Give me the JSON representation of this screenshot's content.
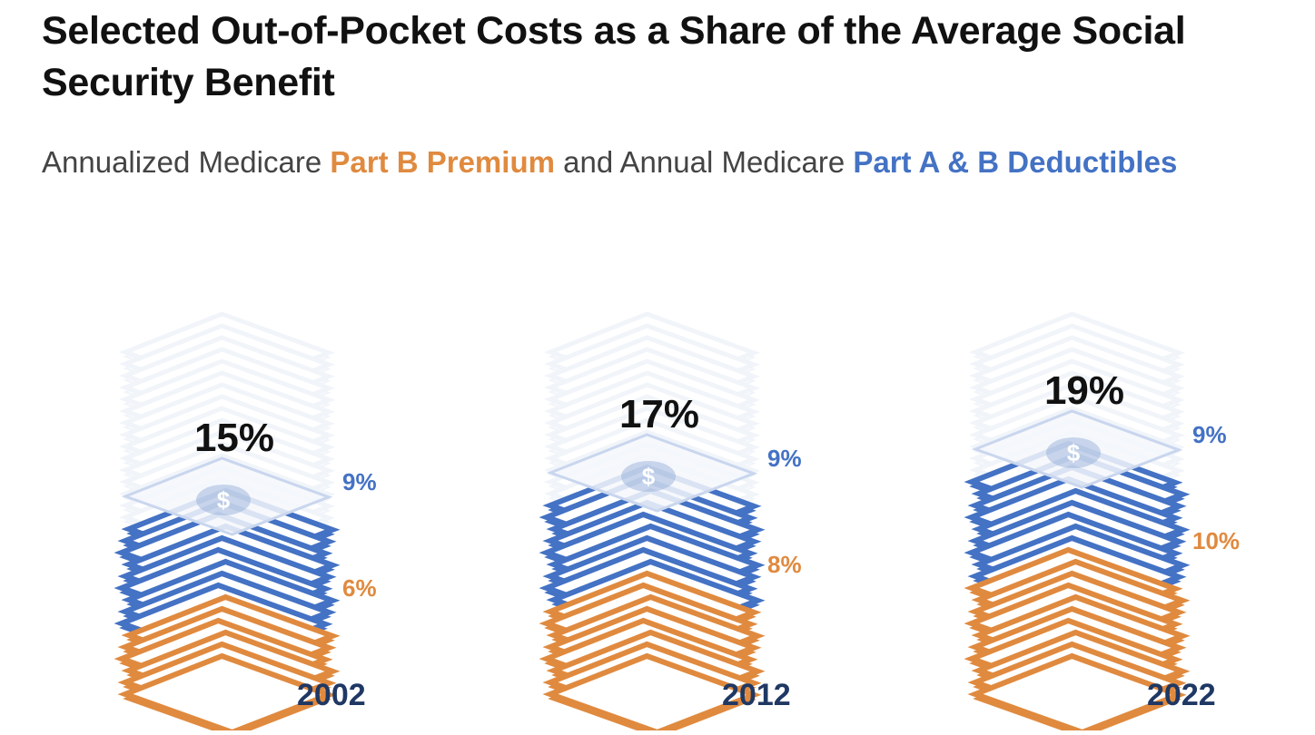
{
  "title": "Selected Out-of-Pocket Costs as a Share of the Average Social Security Benefit",
  "subtitle": {
    "part1": "Annualized Medicare ",
    "highlight1": "Part B Premium",
    "part2": " and Annual Medicare ",
    "highlight2": "Part A & B Deductibles"
  },
  "colors": {
    "premium": "#e08a3f",
    "deductibles": "#4472c4",
    "ghost": "#e6edf7",
    "year": "#1f3864"
  },
  "chart_data": {
    "type": "bar",
    "stacked": true,
    "categories": [
      "2002",
      "2012",
      "2022"
    ],
    "series": [
      {
        "name": "Part B Premium",
        "values": [
          6,
          8,
          10
        ]
      },
      {
        "name": "Part A & B Deductibles",
        "values": [
          9,
          9,
          9
        ]
      }
    ],
    "totals": [
      15,
      17,
      19
    ],
    "value_labels": {
      "premium": [
        "6%",
        "8%",
        "10%"
      ],
      "deductibles": [
        "9%",
        "9%",
        "9%"
      ],
      "totals": [
        "15%",
        "17%",
        "19%"
      ]
    },
    "unit": "%",
    "ylim": [
      0,
      30
    ]
  }
}
